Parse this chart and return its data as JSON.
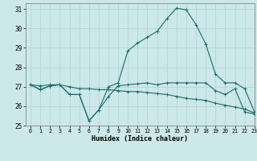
{
  "xlabel": "Humidex (Indice chaleur)",
  "bg_color": "#cce8e8",
  "grid_color": "#b0d8d8",
  "line_color": "#1a6b6b",
  "xlim": [
    -0.5,
    23
  ],
  "ylim": [
    25,
    31.3
  ],
  "yticks": [
    25,
    26,
    27,
    28,
    29,
    30,
    31
  ],
  "xticks": [
    0,
    1,
    2,
    3,
    4,
    5,
    6,
    7,
    8,
    9,
    10,
    11,
    12,
    13,
    14,
    15,
    16,
    17,
    18,
    19,
    20,
    21,
    22,
    23
  ],
  "series": [
    [
      27.1,
      26.85,
      27.05,
      27.1,
      26.6,
      26.6,
      25.25,
      25.8,
      26.5,
      27.05,
      27.1,
      27.15,
      27.2,
      27.1,
      27.2,
      27.2,
      27.2,
      27.2,
      27.2,
      26.8,
      26.6,
      26.9,
      25.7,
      25.6
    ],
    [
      27.1,
      26.85,
      27.05,
      27.1,
      26.6,
      26.6,
      25.25,
      25.8,
      27.0,
      27.2,
      28.85,
      29.25,
      29.55,
      29.85,
      30.5,
      31.05,
      30.95,
      30.2,
      29.2,
      27.65,
      27.2,
      27.2,
      26.9,
      25.7
    ],
    [
      27.1,
      27.05,
      27.1,
      27.1,
      27.0,
      26.9,
      26.9,
      26.85,
      26.85,
      26.8,
      26.75,
      26.75,
      26.7,
      26.65,
      26.6,
      26.5,
      26.4,
      26.35,
      26.3,
      26.15,
      26.05,
      25.95,
      25.85,
      25.65
    ]
  ]
}
